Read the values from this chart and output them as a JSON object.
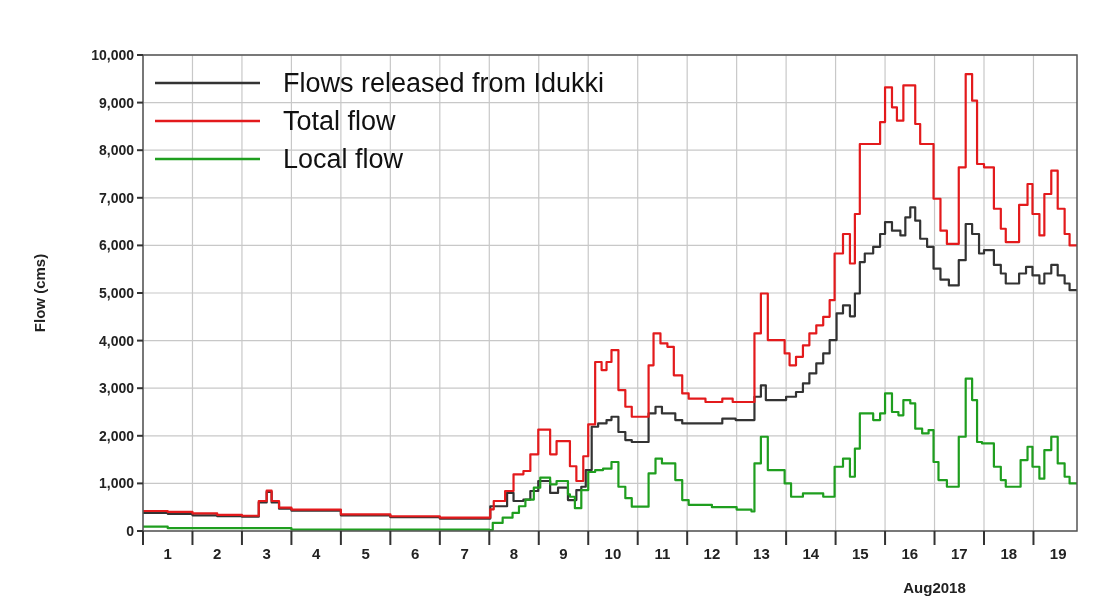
{
  "chart_data": {
    "type": "step",
    "ylabel": "Flow (cms)",
    "xlabel": "Aug2018",
    "xlim": [
      1,
      19.88
    ],
    "ylim": [
      0,
      10000
    ],
    "yticks": [
      {
        "value": 0,
        "label": "0"
      },
      {
        "value": 1000,
        "label": "1,000"
      },
      {
        "value": 2000,
        "label": "2,000"
      },
      {
        "value": 3000,
        "label": "3,000"
      },
      {
        "value": 4000,
        "label": "4,000"
      },
      {
        "value": 5000,
        "label": "5,000"
      },
      {
        "value": 6000,
        "label": "6,000"
      },
      {
        "value": 7000,
        "label": "7,000"
      },
      {
        "value": 8000,
        "label": "8,000"
      },
      {
        "value": 9000,
        "label": "9,000"
      },
      {
        "value": 10000,
        "label": "10,000"
      }
    ],
    "xticks": [
      {
        "value": 1,
        "label": null
      },
      {
        "value": 2,
        "label": null
      },
      {
        "value": 3,
        "label": null
      },
      {
        "value": 4,
        "label": null
      },
      {
        "value": 5,
        "label": null
      },
      {
        "value": 6,
        "label": null
      },
      {
        "value": 7,
        "label": null
      },
      {
        "value": 8,
        "label": null
      },
      {
        "value": 9,
        "label": null
      },
      {
        "value": 10,
        "label": null
      },
      {
        "value": 11,
        "label": null
      },
      {
        "value": 12,
        "label": null
      },
      {
        "value": 13,
        "label": null
      },
      {
        "value": 14,
        "label": null
      },
      {
        "value": 15,
        "label": null
      },
      {
        "value": 16,
        "label": null
      },
      {
        "value": 17,
        "label": null
      },
      {
        "value": 18,
        "label": null
      },
      {
        "value": 19,
        "label": null
      },
      {
        "value": 1.5,
        "label": "1"
      },
      {
        "value": 2.5,
        "label": "2"
      },
      {
        "value": 3.5,
        "label": "3"
      },
      {
        "value": 4.5,
        "label": "4"
      },
      {
        "value": 5.5,
        "label": "5"
      },
      {
        "value": 6.5,
        "label": "6"
      },
      {
        "value": 7.5,
        "label": "7"
      },
      {
        "value": 8.5,
        "label": "8"
      },
      {
        "value": 9.5,
        "label": "9"
      },
      {
        "value": 10.5,
        "label": "10"
      },
      {
        "value": 11.5,
        "label": "11"
      },
      {
        "value": 12.5,
        "label": "12"
      },
      {
        "value": 13.5,
        "label": "13"
      },
      {
        "value": 14.5,
        "label": "14"
      },
      {
        "value": 15.5,
        "label": "15"
      },
      {
        "value": 16.5,
        "label": "16"
      },
      {
        "value": 17.5,
        "label": "17"
      },
      {
        "value": 18.5,
        "label": "18"
      },
      {
        "value": 19.5,
        "label": "19"
      }
    ],
    "grid": true,
    "legend": "top left",
    "line_style": "solid",
    "marker": "none",
    "series": [
      {
        "name": "Flows released from Idukki",
        "color": "#333333",
        "x": [
          1,
          1.5,
          2,
          2.5,
          3,
          3.34,
          3.5,
          3.6,
          3.75,
          4,
          5,
          6,
          7,
          8.02,
          8.36,
          8.49,
          8.69,
          8.83,
          8.99,
          9.23,
          9.39,
          9.59,
          9.66,
          9.76,
          9.86,
          9.95,
          10.07,
          10.2,
          10.37,
          10.47,
          10.61,
          10.75,
          10.88,
          11.22,
          11.36,
          11.49,
          11.76,
          11.9,
          12.71,
          12.98,
          13.36,
          13.49,
          13.59,
          14.0,
          14.2,
          14.34,
          14.47,
          14.61,
          14.75,
          14.88,
          15.02,
          15.15,
          15.29,
          15.39,
          15.49,
          15.59,
          15.76,
          15.9,
          16.0,
          16.14,
          16.31,
          16.41,
          16.51,
          16.61,
          16.71,
          16.85,
          16.98,
          17.12,
          17.29,
          17.49,
          17.63,
          17.76,
          17.9,
          18.0,
          18.2,
          18.34,
          18.44,
          18.71,
          18.85,
          18.98,
          19.12,
          19.22,
          19.36,
          19.49,
          19.63,
          19.73,
          19.88
        ],
        "values": [
          380,
          360,
          330,
          310,
          300,
          600,
          820,
          600,
          470,
          430,
          330,
          290,
          260,
          520,
          800,
          630,
          660,
          840,
          1050,
          800,
          910,
          650,
          650,
          860,
          930,
          1280,
          2190,
          2260,
          2330,
          2400,
          2080,
          1910,
          1870,
          2470,
          2610,
          2470,
          2330,
          2260,
          2360,
          2330,
          2820,
          3060,
          2750,
          2820,
          2920,
          3100,
          3310,
          3520,
          3730,
          4010,
          4570,
          4740,
          4510,
          4990,
          5650,
          5830,
          5970,
          6240,
          6490,
          6310,
          6210,
          6590,
          6800,
          6520,
          6140,
          5970,
          5510,
          5280,
          5160,
          5690,
          6450,
          6240,
          5830,
          5900,
          5590,
          5410,
          5200,
          5410,
          5550,
          5370,
          5200,
          5410,
          5590,
          5370,
          5200,
          5060,
          5060
        ]
      },
      {
        "name": "Total flow",
        "color": "#e31a1c",
        "x": [
          1,
          1.5,
          2,
          2.5,
          3,
          3.34,
          3.5,
          3.6,
          3.75,
          4,
          5,
          6,
          7,
          8.02,
          8.09,
          8.32,
          8.49,
          8.69,
          8.83,
          8.99,
          9.23,
          9.36,
          9.63,
          9.76,
          9.9,
          10.0,
          10.14,
          10.27,
          10.37,
          10.47,
          10.61,
          10.75,
          10.88,
          11.22,
          11.32,
          11.46,
          11.6,
          11.73,
          11.9,
          12.03,
          12.37,
          12.71,
          12.92,
          13.36,
          13.49,
          13.63,
          13.97,
          14.07,
          14.2,
          14.34,
          14.47,
          14.61,
          14.75,
          14.88,
          14.98,
          15.15,
          15.29,
          15.39,
          15.49,
          15.9,
          16.0,
          16.14,
          16.24,
          16.37,
          16.61,
          16.71,
          16.98,
          17.12,
          17.25,
          17.49,
          17.63,
          17.76,
          17.86,
          18.0,
          18.2,
          18.34,
          18.44,
          18.71,
          18.88,
          18.98,
          19.12,
          19.22,
          19.36,
          19.49,
          19.63,
          19.73,
          19.88
        ],
        "values": [
          420,
          400,
          370,
          340,
          320,
          630,
          850,
          630,
          490,
          450,
          350,
          310,
          280,
          455,
          630,
          840,
          1190,
          1260,
          1610,
          2130,
          1610,
          1890,
          1360,
          1050,
          1570,
          2240,
          3550,
          3380,
          3550,
          3800,
          2960,
          2610,
          2400,
          3480,
          4150,
          3940,
          3870,
          3270,
          2890,
          2780,
          2710,
          2780,
          2710,
          4150,
          4990,
          4010,
          3730,
          3480,
          3660,
          3900,
          4150,
          4320,
          4500,
          4850,
          5830,
          6240,
          5620,
          6660,
          8130,
          8590,
          9320,
          8900,
          8620,
          9360,
          8550,
          8130,
          6980,
          6310,
          6030,
          7640,
          9600,
          9040,
          7710,
          7640,
          6770,
          6350,
          6070,
          6850,
          7290,
          6660,
          6210,
          7080,
          7570,
          6770,
          6240,
          6000,
          6000
        ]
      },
      {
        "name": "Local flow",
        "color": "#1f9e1f",
        "x": [
          1,
          1.5,
          4,
          8.0,
          8.07,
          8.27,
          8.47,
          8.6,
          8.73,
          8.9,
          9.03,
          9.23,
          9.36,
          9.59,
          9.63,
          9.73,
          9.86,
          10.0,
          10.14,
          10.3,
          10.47,
          10.61,
          10.75,
          10.88,
          11.22,
          11.36,
          11.49,
          11.76,
          11.9,
          12.03,
          12.5,
          13.0,
          13.3,
          13.36,
          13.49,
          13.63,
          13.97,
          14.1,
          14.34,
          14.75,
          14.98,
          15.15,
          15.29,
          15.39,
          15.49,
          15.76,
          15.9,
          16.0,
          16.14,
          16.27,
          16.37,
          16.51,
          16.61,
          16.75,
          16.88,
          16.98,
          17.08,
          17.25,
          17.49,
          17.63,
          17.76,
          17.86,
          17.96,
          18.2,
          18.34,
          18.44,
          18.74,
          18.88,
          18.98,
          19.12,
          19.22,
          19.36,
          19.49,
          19.63,
          19.73,
          19.88
        ],
        "values": [
          90,
          60,
          30,
          20,
          170,
          280,
          380,
          520,
          660,
          910,
          1120,
          980,
          1050,
          770,
          720,
          480,
          860,
          1240,
          1280,
          1310,
          1450,
          930,
          690,
          510,
          1210,
          1520,
          1420,
          1070,
          650,
          550,
          500,
          450,
          410,
          1420,
          1980,
          1280,
          1000,
          720,
          790,
          720,
          1350,
          1520,
          1140,
          1730,
          2470,
          2330,
          2470,
          2890,
          2500,
          2430,
          2750,
          2680,
          2150,
          2050,
          2120,
          1450,
          1070,
          930,
          1980,
          3200,
          2750,
          1870,
          1840,
          1350,
          1070,
          930,
          1490,
          1770,
          1350,
          1100,
          1700,
          1980,
          1420,
          1140,
          1000,
          1000
        ]
      }
    ]
  }
}
